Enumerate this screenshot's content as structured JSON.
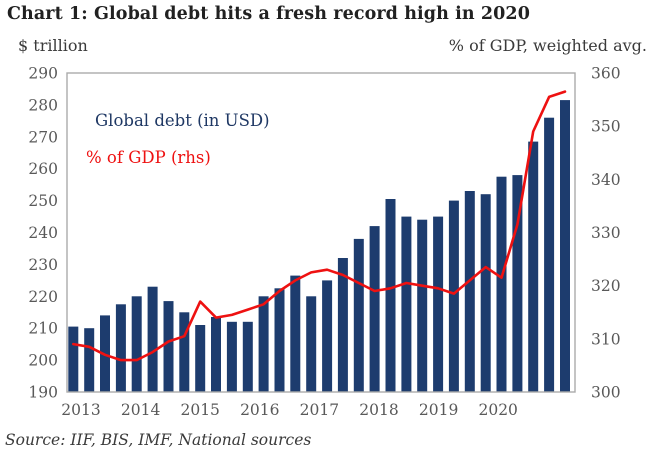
{
  "title": "Chart 1: Global debt hits a fresh record high in 2020",
  "left_axis_unit": "$ trillion",
  "right_axis_unit": "% of GDP, weighted avg.",
  "legend": {
    "bars": "Global debt (in USD)",
    "line": "% of GDP (rhs)"
  },
  "source": "Source: IIF, BIS, IMF, National sources",
  "colors": {
    "bar": "#1d3c6e",
    "line": "#ee1111",
    "legend_bar_text": "#1f3864",
    "legend_line_text": "#ee1111",
    "axis_text": "#595959",
    "frame": "#ababab",
    "title_text": "#212121"
  },
  "chart_data": {
    "type": "bar+line",
    "title": "Chart 1: Global debt hits a fresh record high in 2020",
    "x_years": [
      "2013",
      "2014",
      "2015",
      "2016",
      "2017",
      "2018",
      "2019",
      "2020"
    ],
    "quarters_per_year": 4,
    "grid": false,
    "legend_position": "inside top-left",
    "left_axis": {
      "label": "$ trillion",
      "min": 190,
      "max": 290,
      "step": 10
    },
    "right_axis": {
      "label": "% of GDP, weighted avg.",
      "min": 300,
      "max": 360,
      "step": 10
    },
    "series": [
      {
        "name": "Global debt (in USD)",
        "type": "bar",
        "axis": "left",
        "unit": "$ trillion",
        "values": [
          210.5,
          210,
          214,
          217.5,
          220,
          223,
          218.5,
          215,
          211,
          213.5,
          212,
          212,
          220,
          222.5,
          226.5,
          220,
          225,
          232,
          238,
          242,
          250.5,
          245,
          244,
          245,
          250,
          253,
          252,
          257.5,
          258,
          268.5,
          276,
          281.5
        ]
      },
      {
        "name": "% of GDP (rhs)",
        "type": "line",
        "axis": "right",
        "unit": "% of GDP",
        "values": [
          309,
          308.5,
          307,
          306,
          306,
          307.5,
          309.5,
          310.5,
          317,
          314,
          314.5,
          315.5,
          316.5,
          319,
          321,
          322.5,
          323,
          322,
          320.5,
          319,
          319.5,
          320.5,
          320,
          319.5,
          318.5,
          321,
          323.5,
          321.5,
          331.5,
          349,
          355.5,
          356.5
        ]
      }
    ]
  }
}
